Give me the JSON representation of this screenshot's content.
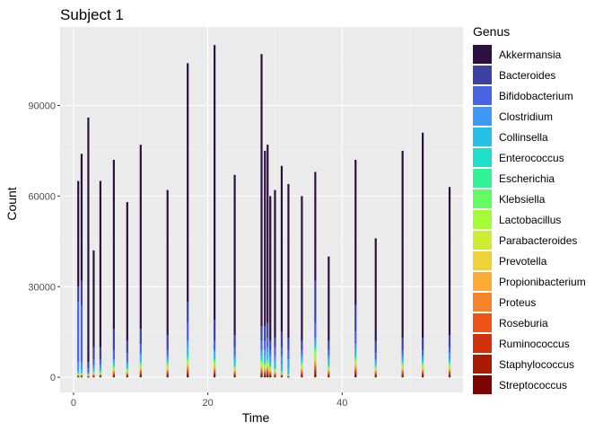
{
  "chart_data": {
    "type": "bar",
    "stacked": true,
    "title": "Subject 1",
    "xlabel": "Time",
    "ylabel": "Count",
    "xlim": [
      -2,
      58
    ],
    "ylim": [
      -5000,
      116000
    ],
    "x_ticks": [
      0,
      20,
      40
    ],
    "y_ticks": [
      0,
      30000,
      60000,
      90000
    ],
    "y_tick_labels": [
      "0",
      "30000",
      "60000",
      "90000"
    ],
    "grid": true,
    "legend_position": "right",
    "legend_title": "Genus",
    "genera": [
      "Akkermansia",
      "Bacteroides",
      "Bifidobacterium",
      "Clostridium",
      "Collinsella",
      "Enterococcus",
      "Escherichia",
      "Klebsiella",
      "Lactobacillus",
      "Parabacteroides",
      "Prevotella",
      "Propionibacterium",
      "Proteus",
      "Roseburia",
      "Ruminococcus",
      "Staphylococcus",
      "Streptococcus"
    ],
    "colors": [
      "#2d1041",
      "#3c42a4",
      "#4664e4",
      "#3e98f6",
      "#27bfe7",
      "#1fdfca",
      "#33f197",
      "#65fb65",
      "#a6fb38",
      "#cfeb34",
      "#eed23a",
      "#fbaa35",
      "#f8822b",
      "#ec5314",
      "#d1310b",
      "#ab1a03",
      "#7c0501"
    ],
    "points": [
      {
        "time": 0.7,
        "total": 65000,
        "bands": [
          0,
          30000,
          25000,
          5000,
          2000,
          1500
        ]
      },
      {
        "time": 1.2,
        "total": 74000,
        "bands": [
          0,
          32000,
          24000,
          5000,
          2500,
          1500
        ]
      },
      {
        "time": 2.2,
        "total": 86000,
        "bands": [
          0,
          5000,
          3000,
          1500,
          1000
        ]
      },
      {
        "time": 3.0,
        "total": 42000,
        "bands": [
          0,
          10000,
          6000,
          4000,
          3000,
          2000
        ]
      },
      {
        "time": 4.0,
        "total": 65000,
        "bands": [
          0,
          10000,
          6000,
          4000,
          3000,
          2000
        ]
      },
      {
        "time": 6.0,
        "total": 72000,
        "bands": [
          0,
          16000,
          9000,
          6000,
          5000,
          4000
        ]
      },
      {
        "time": 8.0,
        "total": 58000,
        "bands": [
          0,
          12000,
          8000,
          5000,
          4000,
          3000
        ]
      },
      {
        "time": 10.0,
        "total": 77000,
        "bands": [
          0,
          16000,
          11000,
          8000,
          7000,
          5000
        ]
      },
      {
        "time": 14.0,
        "total": 62000,
        "bands": [
          0,
          14000,
          9000,
          7000,
          6000,
          5000
        ]
      },
      {
        "time": 17.0,
        "total": 104000,
        "bands": [
          0,
          25000,
          18000,
          12000,
          10000,
          7000
        ]
      },
      {
        "time": 21.0,
        "total": 110000,
        "bands": [
          0,
          19000,
          12000,
          9000,
          8000,
          6000
        ]
      },
      {
        "time": 24.0,
        "total": 67000,
        "bands": [
          0,
          14000,
          10000,
          7000,
          6000,
          4000
        ]
      },
      {
        "time": 28.0,
        "total": 107000,
        "bands": [
          0,
          17000,
          12000,
          9000,
          7000,
          6000
        ]
      },
      {
        "time": 28.5,
        "total": 75000,
        "bands": [
          0,
          17000,
          12000,
          9000,
          7000,
          5000
        ]
      },
      {
        "time": 28.9,
        "total": 77000,
        "bands": [
          0,
          18000,
          13000,
          10000,
          8000,
          6000
        ]
      },
      {
        "time": 29.3,
        "total": 60000,
        "bands": [
          0,
          12000,
          9000,
          7000,
          5000,
          4000
        ]
      },
      {
        "time": 30.0,
        "total": 62000,
        "bands": [
          0,
          13000,
          10000,
          7000,
          5000,
          3000
        ]
      },
      {
        "time": 31.0,
        "total": 70000,
        "bands": [
          0,
          15000,
          10000,
          7000,
          4000,
          2000
        ]
      },
      {
        "time": 32.0,
        "total": 64000,
        "bands": [
          0,
          13000,
          9000,
          6000,
          3000,
          1000
        ]
      },
      {
        "time": 34.0,
        "total": 60000,
        "bands": [
          0,
          12000,
          9000,
          7000,
          6000,
          5000
        ]
      },
      {
        "time": 36.0,
        "total": 68000,
        "bands": [
          0,
          32000,
          18000,
          13000,
          11000,
          10000
        ]
      },
      {
        "time": 38.0,
        "total": 40000,
        "bands": [
          0,
          12000,
          9000,
          7000,
          6000,
          4000
        ]
      },
      {
        "time": 42.0,
        "total": 72000,
        "bands": [
          0,
          24000,
          15000,
          11000,
          9000,
          7000
        ]
      },
      {
        "time": 45.0,
        "total": 46000,
        "bands": [
          0,
          12000,
          8000,
          6000,
          5000,
          4000
        ]
      },
      {
        "time": 49.0,
        "total": 75000,
        "bands": [
          0,
          13000,
          9000,
          7000,
          6000,
          5000
        ]
      },
      {
        "time": 52.0,
        "total": 81000,
        "bands": [
          0,
          13000,
          9000,
          7000,
          6000,
          5000
        ]
      },
      {
        "time": 56.0,
        "total": 63000,
        "bands": [
          0,
          14000,
          10000,
          8000,
          6000,
          5000
        ]
      }
    ]
  }
}
